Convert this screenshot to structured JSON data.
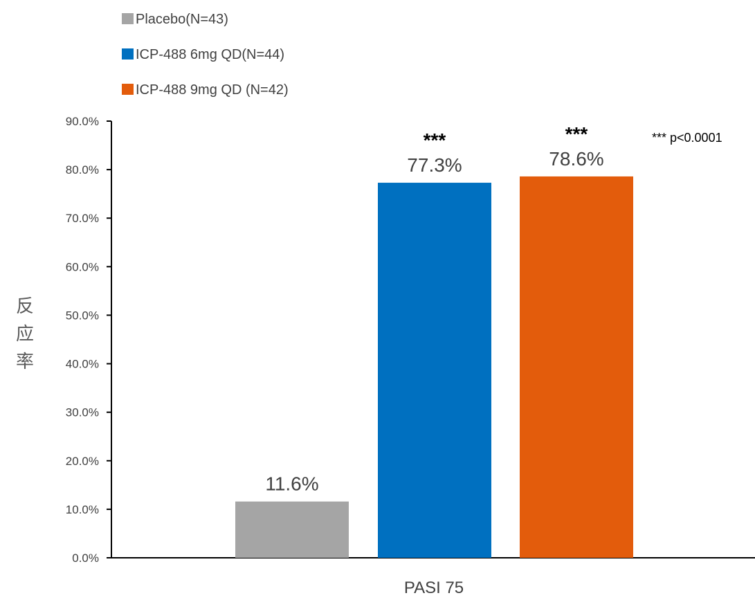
{
  "chart_data": {
    "type": "bar",
    "categories": [
      "PASI 75"
    ],
    "series": [
      {
        "name": "Placebo(N=43)",
        "values": [
          11.6
        ],
        "label": "11.6%",
        "significance": "",
        "color": "#A5A5A5"
      },
      {
        "name": "ICP-488 6mg QD(N=44)",
        "values": [
          77.3
        ],
        "label": "77.3%",
        "significance": "***",
        "color": "#0070C0"
      },
      {
        "name": "ICP-488 9mg QD (N=42)",
        "values": [
          78.6
        ],
        "label": "78.6%",
        "significance": "***",
        "color": "#E35C0C"
      }
    ],
    "ylabel": [
      "反",
      "应",
      "率"
    ],
    "ylim": [
      0,
      90
    ],
    "yticks": [
      "0.0%",
      "10.0%",
      "20.0%",
      "30.0%",
      "40.0%",
      "50.0%",
      "60.0%",
      "70.0%",
      "80.0%",
      "90.0%"
    ],
    "annotation": "*** p<0.0001",
    "legend_position": "top-left",
    "grid": false
  }
}
